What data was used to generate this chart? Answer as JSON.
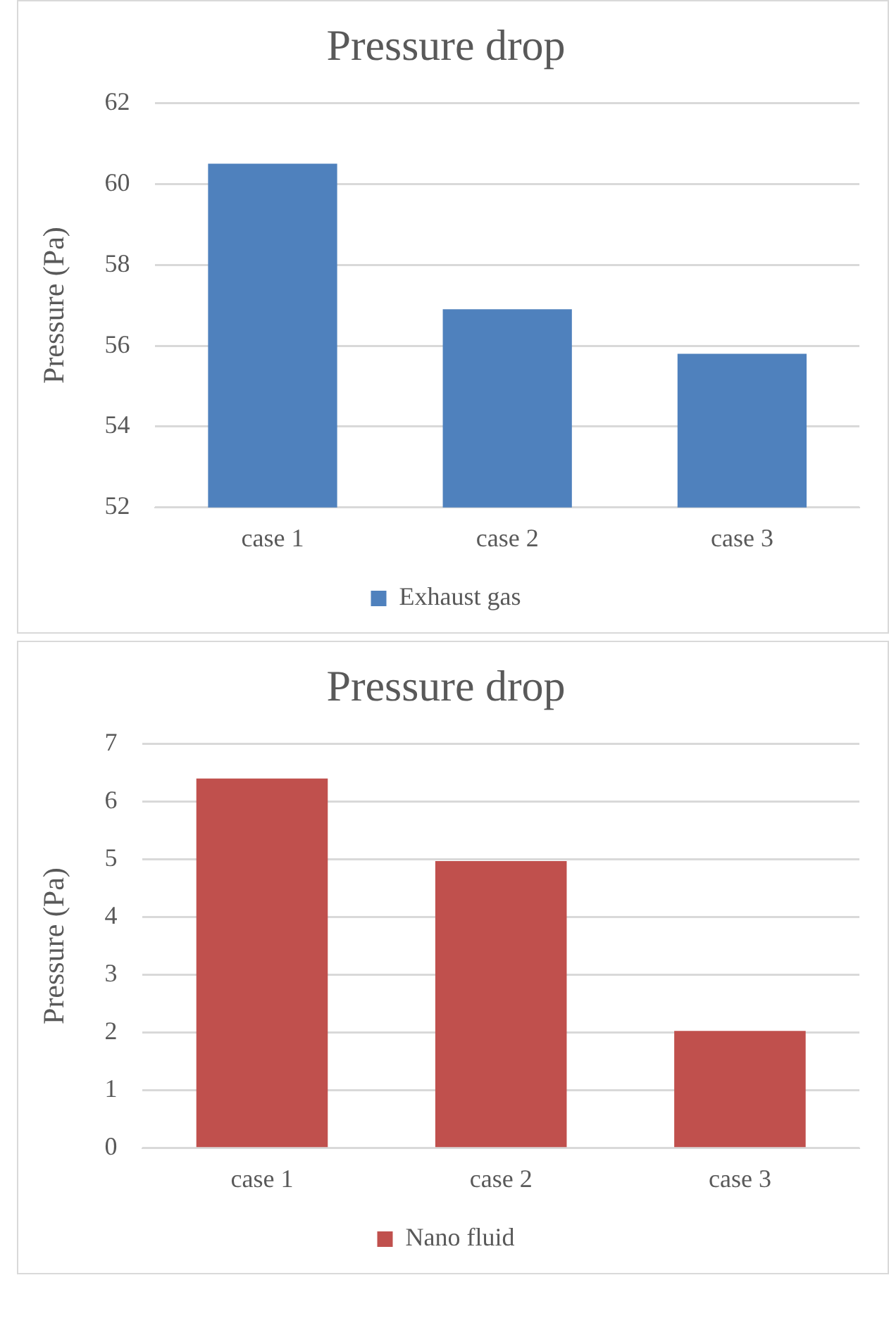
{
  "chart_data": [
    {
      "type": "bar",
      "title": "Pressure drop",
      "ylabel": "Pressure (Pa)",
      "categories": [
        "case 1",
        "case 2",
        "case 3"
      ],
      "series": [
        {
          "name": "Exhaust gas",
          "color": "#4f81bd",
          "values": [
            60.5,
            56.9,
            55.8
          ]
        }
      ],
      "ylim": [
        52,
        62
      ],
      "yticks": [
        52,
        54,
        56,
        58,
        60,
        62
      ],
      "grid": "y",
      "legend": "bottom"
    },
    {
      "type": "bar",
      "title": "Pressure drop",
      "ylabel": "Pressure (Pa)",
      "categories": [
        "case 1",
        "case 2",
        "case 3"
      ],
      "series": [
        {
          "name": "Nano fluid",
          "color": "#c0504d",
          "values": [
            6.4,
            4.97,
            2.03
          ]
        }
      ],
      "ylim": [
        0,
        7
      ],
      "yticks": [
        0,
        1,
        2,
        3,
        4,
        5,
        6,
        7
      ],
      "grid": "y",
      "legend": "bottom"
    }
  ]
}
